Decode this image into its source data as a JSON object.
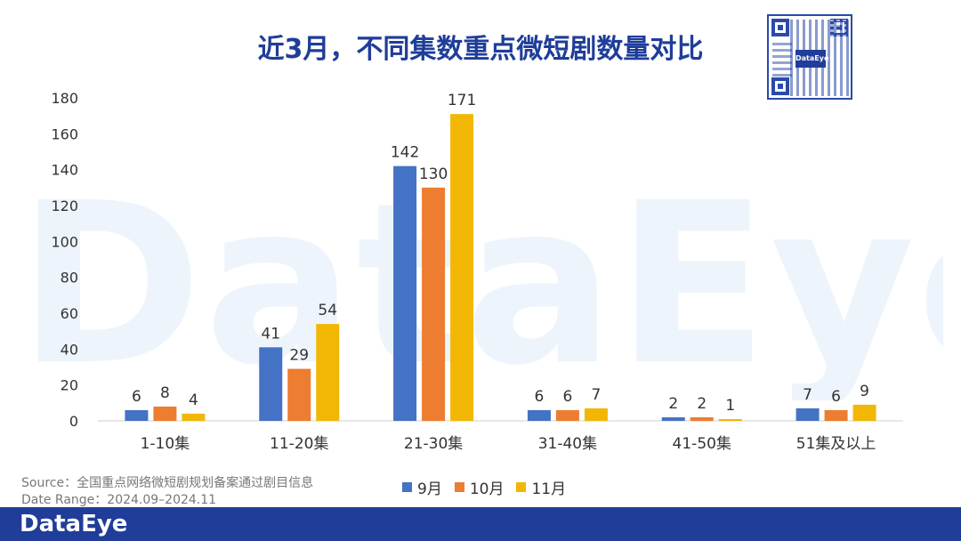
{
  "title": "近3月，不同集数重点微短剧数量对比",
  "watermark": "DataEye",
  "qr_logo": "DataEye",
  "footer_logo": "DataEye",
  "source": {
    "line1": "Source：全国重点网络微短剧规划备案通过剧目信息",
    "line2": "Date Range：2024.09–2024.11"
  },
  "colors": {
    "series": [
      "#4472c4",
      "#ed7d31",
      "#f2b705"
    ],
    "title": "#1f3d99",
    "footer": "#1f3d99"
  },
  "chart_data": {
    "type": "bar",
    "categories": [
      "1-10集",
      "11-20集",
      "21-30集",
      "31-40集",
      "41-50集",
      "51集及以上"
    ],
    "series": [
      {
        "name": "9月",
        "values": [
          6,
          41,
          142,
          6,
          2,
          7
        ]
      },
      {
        "name": "10月",
        "values": [
          8,
          29,
          130,
          6,
          2,
          6
        ]
      },
      {
        "name": "11月",
        "values": [
          4,
          54,
          171,
          7,
          1,
          9
        ]
      }
    ],
    "ylim": [
      0,
      180
    ],
    "yticks": [
      0,
      20,
      40,
      60,
      80,
      100,
      120,
      140,
      160,
      180
    ],
    "grid": false,
    "legend": "bottom",
    "data_labels": true
  }
}
